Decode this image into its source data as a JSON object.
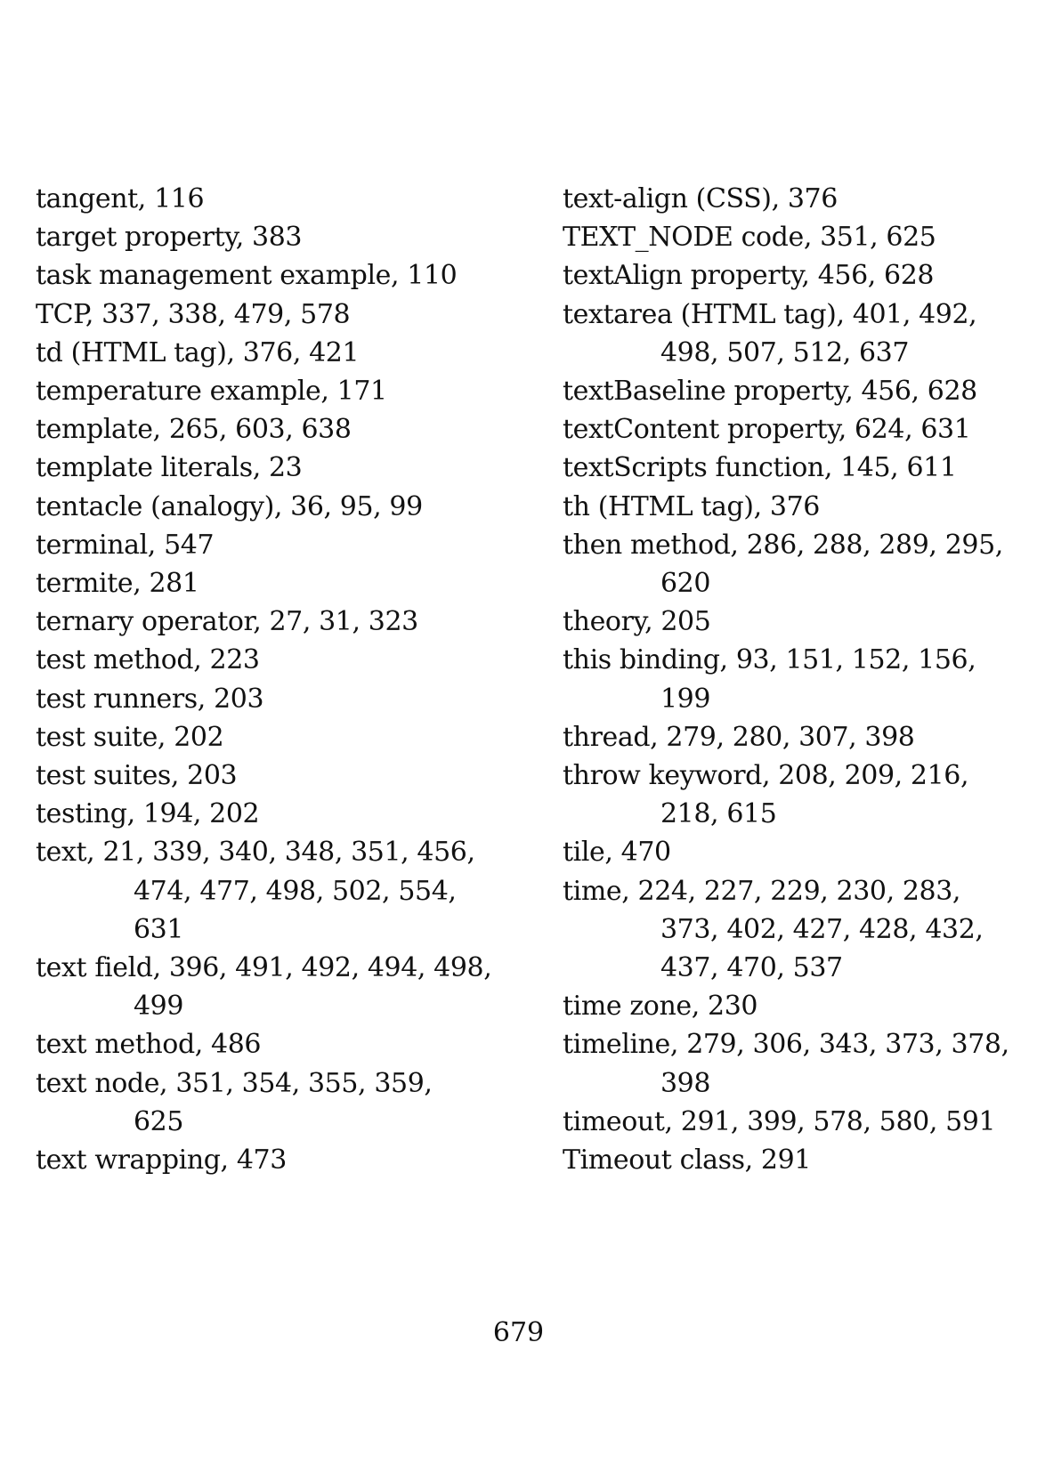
{
  "left_column": [
    {
      "lines": [
        "tangent, 116"
      ]
    },
    {
      "lines": [
        "target property, 383"
      ]
    },
    {
      "lines": [
        "task management example, 110"
      ]
    },
    {
      "lines": [
        "TCP, 337, 338, 479, 578"
      ]
    },
    {
      "lines": [
        "td (HTML tag), 376, 421"
      ]
    },
    {
      "lines": [
        "temperature example, 171"
      ]
    },
    {
      "lines": [
        "template, 265, 603, 638"
      ]
    },
    {
      "lines": [
        "template literals, 23"
      ]
    },
    {
      "lines": [
        "tentacle (analogy), 36, 95, 99"
      ]
    },
    {
      "lines": [
        "terminal, 547"
      ]
    },
    {
      "lines": [
        "termite, 281"
      ]
    },
    {
      "lines": [
        "ternary operator, 27, 31, 323"
      ]
    },
    {
      "lines": [
        "test method, 223"
      ]
    },
    {
      "lines": [
        "test runners, 203"
      ]
    },
    {
      "lines": [
        "test suite, 202"
      ]
    },
    {
      "lines": [
        "test suites, 203"
      ]
    },
    {
      "lines": [
        "testing, 194, 202"
      ]
    },
    {
      "lines": [
        "text, 21, 339, 340, 348, 351, 456,",
        "474, 477, 498, 502, 554,",
        "631"
      ]
    },
    {
      "lines": [
        "text field, 396, 491, 492, 494, 498,",
        "499"
      ]
    },
    {
      "lines": [
        "text method, 486"
      ]
    },
    {
      "lines": [
        "text node, 351, 354, 355, 359,",
        "625"
      ]
    },
    {
      "lines": [
        "text wrapping, 473"
      ]
    }
  ],
  "right_column": [
    {
      "lines": [
        "text-align (CSS), 376"
      ]
    },
    {
      "lines": [
        "TEXT_NODE code, 351, 625"
      ]
    },
    {
      "lines": [
        "textAlign property, 456, 628"
      ]
    },
    {
      "lines": [
        "textarea (HTML tag), 401, 492,",
        "498, 507, 512, 637"
      ]
    },
    {
      "lines": [
        "textBaseline property, 456, 628"
      ]
    },
    {
      "lines": [
        "textContent property, 624, 631"
      ]
    },
    {
      "lines": [
        "textScripts function, 145, 611"
      ]
    },
    {
      "lines": [
        "th (HTML tag), 376"
      ]
    },
    {
      "lines": [
        "then method, 286, 288, 289, 295,",
        "620"
      ]
    },
    {
      "lines": [
        "theory, 205"
      ]
    },
    {
      "lines": [
        "this binding, 93, 151, 152, 156,",
        "199"
      ]
    },
    {
      "lines": [
        "thread, 279, 280, 307, 398"
      ]
    },
    {
      "lines": [
        "throw keyword, 208, 209, 216,",
        "218, 615"
      ]
    },
    {
      "lines": [
        "tile, 470"
      ]
    },
    {
      "lines": [
        "time, 224, 227, 229, 230, 283,",
        "373, 402, 427, 428, 432,",
        "437, 470, 537"
      ]
    },
    {
      "lines": [
        "time zone, 230"
      ]
    },
    {
      "lines": [
        "timeline, 279, 306, 343, 373, 378,",
        "398"
      ]
    },
    {
      "lines": [
        "timeout, 291, 399, 578, 580, 591"
      ]
    },
    {
      "lines": [
        "Timeout class, 291"
      ]
    }
  ],
  "page_number": "679"
}
